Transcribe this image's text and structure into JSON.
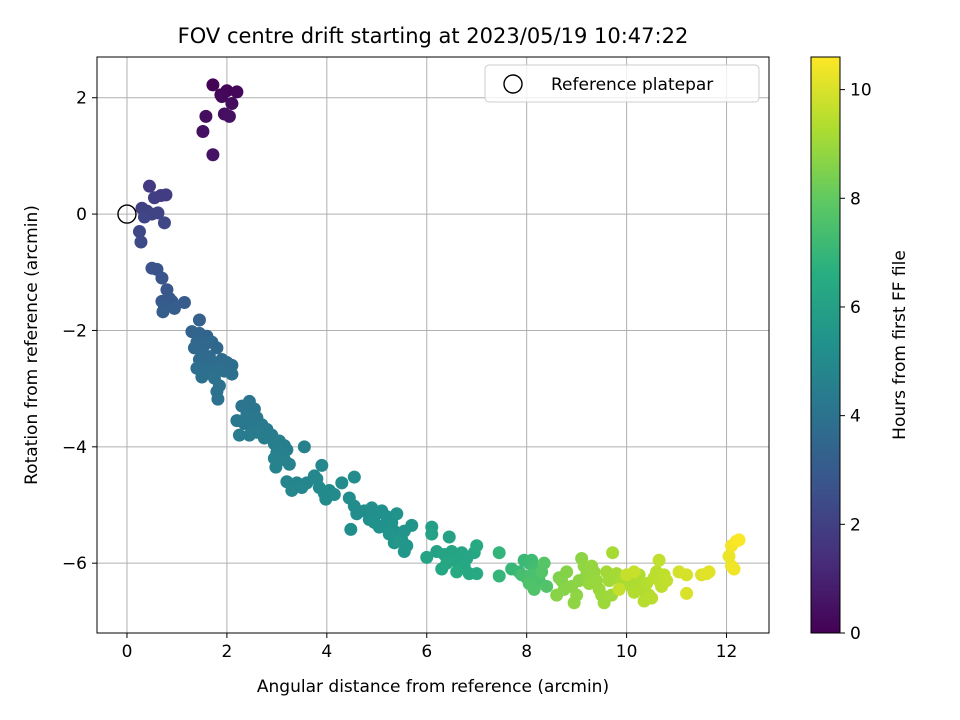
{
  "chart_data": {
    "type": "scatter",
    "title": "FOV centre drift starting at 2023/05/19 10:47:22",
    "xlabel": "Angular distance from reference (arcmin)",
    "ylabel": "Rotation from reference (arcmin)",
    "xlim": [
      -0.6,
      12.85
    ],
    "ylim": [
      -7.2,
      2.7
    ],
    "xticks": [
      0,
      2,
      4,
      6,
      8,
      10,
      12
    ],
    "xtick_labels": [
      "0",
      "2",
      "4",
      "6",
      "8",
      "10",
      "12"
    ],
    "yticks": [
      2,
      0,
      -2,
      -4,
      -6
    ],
    "ytick_labels": [
      "2",
      "0",
      "−2",
      "−4",
      "−6"
    ],
    "grid": true,
    "legend": {
      "position": "top-right",
      "entries": [
        "Reference platepar"
      ]
    },
    "colorbar": {
      "label": "Hours from first FF file",
      "colormap": "viridis",
      "range": [
        0,
        10.6
      ],
      "ticks": [
        0,
        2,
        4,
        6,
        8,
        10
      ],
      "tick_labels": [
        "0",
        "2",
        "4",
        "6",
        "8",
        "10"
      ]
    },
    "reference_point": {
      "x": 0,
      "y": 0
    },
    "points": [
      [
        1.72,
        2.22,
        0.05
      ],
      [
        1.88,
        2.05,
        0.1
      ],
      [
        2.0,
        2.12,
        0.15
      ],
      [
        2.2,
        2.1,
        0.2
      ],
      [
        1.9,
        2.02,
        0.25
      ],
      [
        2.1,
        1.9,
        0.3
      ],
      [
        1.58,
        1.68,
        0.35
      ],
      [
        1.95,
        1.72,
        0.4
      ],
      [
        2.05,
        1.68,
        0.45
      ],
      [
        1.52,
        1.42,
        0.5
      ],
      [
        1.72,
        1.02,
        0.55
      ],
      [
        0.45,
        0.48,
        1.8
      ],
      [
        0.68,
        0.32,
        1.85
      ],
      [
        0.78,
        0.33,
        1.9
      ],
      [
        0.55,
        0.28,
        1.95
      ],
      [
        0.3,
        0.1,
        2.0
      ],
      [
        0.4,
        0.05,
        2.05
      ],
      [
        0.5,
        0.0,
        2.1
      ],
      [
        0.62,
        0.02,
        2.15
      ],
      [
        0.35,
        -0.05,
        2.2
      ],
      [
        0.75,
        -0.15,
        2.25
      ],
      [
        0.25,
        -0.3,
        2.3
      ],
      [
        0.28,
        -0.48,
        2.35
      ],
      [
        0.5,
        -0.93,
        2.7
      ],
      [
        0.6,
        -0.95,
        2.75
      ],
      [
        0.7,
        -1.1,
        2.8
      ],
      [
        0.8,
        -1.3,
        2.85
      ],
      [
        0.85,
        -1.45,
        2.9
      ],
      [
        0.7,
        -1.5,
        2.95
      ],
      [
        0.9,
        -1.5,
        3.0
      ],
      [
        0.75,
        -1.6,
        3.05
      ],
      [
        1.15,
        -1.52,
        3.1
      ],
      [
        0.95,
        -1.62,
        3.12
      ],
      [
        0.72,
        -1.68,
        3.15
      ],
      [
        1.45,
        -1.82,
        3.3
      ],
      [
        1.3,
        -2.02,
        3.35
      ],
      [
        1.45,
        -2.05,
        3.4
      ],
      [
        1.6,
        -2.1,
        3.45
      ],
      [
        1.4,
        -2.2,
        3.5
      ],
      [
        1.55,
        -2.25,
        3.52
      ],
      [
        1.7,
        -2.2,
        3.55
      ],
      [
        1.8,
        -2.3,
        3.58
      ],
      [
        1.35,
        -2.3,
        3.6
      ],
      [
        1.5,
        -2.4,
        3.62
      ],
      [
        1.65,
        -2.45,
        3.65
      ],
      [
        1.45,
        -2.5,
        3.68
      ],
      [
        1.9,
        -2.5,
        3.7
      ],
      [
        2.0,
        -2.55,
        3.72
      ],
      [
        1.7,
        -2.55,
        3.74
      ],
      [
        1.55,
        -2.62,
        3.76
      ],
      [
        2.1,
        -2.6,
        3.78
      ],
      [
        1.8,
        -2.65,
        3.8
      ],
      [
        1.4,
        -2.65,
        3.82
      ],
      [
        1.95,
        -2.7,
        3.84
      ],
      [
        1.6,
        -2.72,
        3.86
      ],
      [
        2.1,
        -2.75,
        3.88
      ],
      [
        1.5,
        -2.8,
        3.9
      ],
      [
        1.75,
        -2.82,
        3.92
      ],
      [
        1.85,
        -2.95,
        3.94
      ],
      [
        1.8,
        -3.05,
        3.96
      ],
      [
        1.82,
        -3.18,
        3.98
      ],
      [
        2.45,
        -3.22,
        4.1
      ],
      [
        2.3,
        -3.3,
        4.12
      ],
      [
        2.55,
        -3.35,
        4.15
      ],
      [
        2.4,
        -3.45,
        4.18
      ],
      [
        2.6,
        -3.5,
        4.2
      ],
      [
        2.2,
        -3.55,
        4.22
      ],
      [
        2.35,
        -3.6,
        4.25
      ],
      [
        2.5,
        -3.65,
        4.28
      ],
      [
        2.7,
        -3.62,
        4.3
      ],
      [
        2.8,
        -3.7,
        4.33
      ],
      [
        2.6,
        -3.75,
        4.35
      ],
      [
        2.25,
        -3.8,
        4.38
      ],
      [
        2.45,
        -3.8,
        4.4
      ],
      [
        2.9,
        -3.8,
        4.42
      ],
      [
        2.75,
        -3.85,
        4.45
      ],
      [
        3.05,
        -3.9,
        4.48
      ],
      [
        2.95,
        -3.95,
        4.5
      ],
      [
        3.15,
        -3.98,
        4.52
      ],
      [
        3.2,
        -4.05,
        4.55
      ],
      [
        3.0,
        -4.1,
        4.58
      ],
      [
        3.55,
        -4.0,
        4.6
      ],
      [
        3.15,
        -4.22,
        4.62
      ],
      [
        2.95,
        -4.2,
        4.65
      ],
      [
        3.25,
        -4.3,
        4.68
      ],
      [
        2.98,
        -4.35,
        4.7
      ],
      [
        3.2,
        -4.6,
        4.75
      ],
      [
        3.4,
        -4.62,
        4.78
      ],
      [
        3.6,
        -4.62,
        4.8
      ],
      [
        3.3,
        -4.75,
        4.82
      ],
      [
        3.5,
        -4.7,
        4.85
      ],
      [
        3.8,
        -4.55,
        4.88
      ],
      [
        3.75,
        -4.5,
        4.9
      ],
      [
        3.9,
        -4.32,
        4.92
      ],
      [
        3.85,
        -4.7,
        4.95
      ],
      [
        3.95,
        -4.8,
        4.98
      ],
      [
        4.05,
        -4.75,
        5.0
      ],
      [
        3.98,
        -4.9,
        5.02
      ],
      [
        4.15,
        -4.82,
        5.04
      ],
      [
        4.3,
        -4.62,
        5.06
      ],
      [
        4.55,
        -4.52,
        5.08
      ],
      [
        4.45,
        -4.88,
        5.1
      ],
      [
        4.55,
        -5.02,
        5.12
      ],
      [
        4.6,
        -5.15,
        5.14
      ],
      [
        4.48,
        -5.42,
        5.16
      ],
      [
        4.75,
        -5.1,
        5.18
      ],
      [
        4.9,
        -5.05,
        5.2
      ],
      [
        5.0,
        -5.15,
        5.22
      ],
      [
        5.1,
        -5.1,
        5.24
      ],
      [
        4.85,
        -5.25,
        5.26
      ],
      [
        5.2,
        -5.2,
        5.28
      ],
      [
        4.95,
        -5.3,
        5.3
      ],
      [
        5.15,
        -5.35,
        5.32
      ],
      [
        5.3,
        -5.3,
        5.34
      ],
      [
        5.05,
        -5.38,
        5.36
      ],
      [
        5.4,
        -5.15,
        5.38
      ],
      [
        5.35,
        -5.45,
        5.4
      ],
      [
        5.25,
        -5.5,
        5.42
      ],
      [
        5.55,
        -5.45,
        5.44
      ],
      [
        5.7,
        -5.35,
        5.46
      ],
      [
        5.5,
        -5.6,
        5.48
      ],
      [
        5.35,
        -5.65,
        5.5
      ],
      [
        5.6,
        -5.7,
        5.52
      ],
      [
        5.55,
        -5.8,
        5.54
      ],
      [
        5.45,
        -5.62,
        5.56
      ],
      [
        6.1,
        -5.38,
        6.0
      ],
      [
        6.1,
        -5.5,
        6.02
      ],
      [
        6.45,
        -5.55,
        6.05
      ],
      [
        6.2,
        -5.8,
        6.08
      ],
      [
        6.0,
        -5.9,
        6.1
      ],
      [
        6.35,
        -5.85,
        6.12
      ],
      [
        6.5,
        -5.8,
        6.15
      ],
      [
        6.7,
        -5.82,
        6.18
      ],
      [
        6.55,
        -5.95,
        6.2
      ],
      [
        6.8,
        -5.92,
        6.22
      ],
      [
        6.95,
        -5.82,
        6.25
      ],
      [
        6.4,
        -6.0,
        6.28
      ],
      [
        6.3,
        -6.1,
        6.3
      ],
      [
        6.75,
        -6.05,
        6.32
      ],
      [
        6.85,
        -6.18,
        6.35
      ],
      [
        6.6,
        -6.15,
        6.38
      ],
      [
        7.0,
        -6.18,
        6.4
      ],
      [
        7.0,
        -5.7,
        6.42
      ],
      [
        7.45,
        -5.82,
        6.9
      ],
      [
        7.45,
        -6.22,
        6.95
      ],
      [
        7.7,
        -6.1,
        7.0
      ],
      [
        7.85,
        -6.15,
        7.05
      ],
      [
        7.95,
        -5.95,
        7.1
      ],
      [
        8.05,
        -6.0,
        7.15
      ],
      [
        8.1,
        -5.95,
        7.2
      ],
      [
        8.15,
        -6.05,
        7.25
      ],
      [
        8.2,
        -6.1,
        7.3
      ],
      [
        7.9,
        -6.2,
        7.35
      ],
      [
        8.0,
        -6.25,
        7.4
      ],
      [
        8.1,
        -6.2,
        7.45
      ],
      [
        8.25,
        -6.3,
        7.5
      ],
      [
        8.05,
        -6.35,
        7.55
      ],
      [
        8.15,
        -6.45,
        7.6
      ],
      [
        8.4,
        -6.4,
        7.65
      ],
      [
        8.3,
        -6.15,
        7.7
      ],
      [
        8.35,
        -6.0,
        7.75
      ],
      [
        8.65,
        -6.25,
        8.5
      ],
      [
        8.7,
        -6.3,
        8.55
      ],
      [
        8.8,
        -6.15,
        8.6
      ],
      [
        8.75,
        -6.45,
        8.62
      ],
      [
        8.6,
        -6.55,
        8.65
      ],
      [
        8.9,
        -6.4,
        8.68
      ],
      [
        9.05,
        -6.3,
        8.7
      ],
      [
        9.1,
        -5.92,
        8.72
      ],
      [
        9.0,
        -6.55,
        8.75
      ],
      [
        8.95,
        -6.68,
        8.78
      ],
      [
        9.15,
        -6.05,
        8.8
      ],
      [
        9.2,
        -6.2,
        8.82
      ],
      [
        9.3,
        -6.05,
        8.85
      ],
      [
        9.35,
        -6.15,
        8.88
      ],
      [
        9.25,
        -6.35,
        8.9
      ],
      [
        9.4,
        -6.3,
        8.92
      ],
      [
        9.45,
        -6.45,
        8.95
      ],
      [
        9.5,
        -6.55,
        8.98
      ],
      [
        9.55,
        -6.68,
        9.0
      ],
      [
        9.7,
        -6.55,
        9.02
      ],
      [
        9.65,
        -6.3,
        9.05
      ],
      [
        9.75,
        -6.25,
        9.08
      ],
      [
        9.6,
        -6.15,
        9.1
      ],
      [
        9.8,
        -6.18,
        9.12
      ],
      [
        9.72,
        -5.82,
        9.15
      ],
      [
        9.9,
        -6.3,
        9.18
      ],
      [
        10.0,
        -6.35,
        9.2
      ],
      [
        10.05,
        -6.25,
        9.22
      ],
      [
        10.1,
        -6.4,
        9.25
      ],
      [
        10.2,
        -6.3,
        9.28
      ],
      [
        10.25,
        -6.2,
        9.3
      ],
      [
        10.3,
        -6.45,
        9.32
      ],
      [
        10.15,
        -6.5,
        9.35
      ],
      [
        10.4,
        -6.35,
        9.38
      ],
      [
        10.45,
        -6.55,
        9.4
      ],
      [
        10.35,
        -6.65,
        9.42
      ],
      [
        10.5,
        -6.6,
        9.45
      ],
      [
        10.55,
        -6.25,
        9.48
      ],
      [
        10.6,
        -6.15,
        9.5
      ],
      [
        10.65,
        -6.3,
        9.52
      ],
      [
        10.7,
        -6.4,
        9.55
      ],
      [
        10.75,
        -6.2,
        9.58
      ],
      [
        10.65,
        -5.95,
        9.6
      ],
      [
        10.8,
        -6.3,
        9.62
      ],
      [
        10.0,
        -6.2,
        9.65
      ],
      [
        9.85,
        -6.45,
        9.68
      ],
      [
        10.15,
        -6.15,
        9.7
      ],
      [
        11.05,
        -6.15,
        9.9
      ],
      [
        11.2,
        -6.2,
        9.95
      ],
      [
        11.2,
        -6.52,
        10.0
      ],
      [
        11.5,
        -6.2,
        10.05
      ],
      [
        11.6,
        -6.18,
        10.1
      ],
      [
        11.65,
        -6.15,
        10.15
      ],
      [
        12.05,
        -5.88,
        10.3
      ],
      [
        12.1,
        -6.05,
        10.35
      ],
      [
        12.15,
        -6.1,
        10.4
      ],
      [
        12.1,
        -5.7,
        10.45
      ],
      [
        12.2,
        -5.62,
        10.5
      ],
      [
        12.25,
        -5.6,
        10.55
      ]
    ]
  }
}
